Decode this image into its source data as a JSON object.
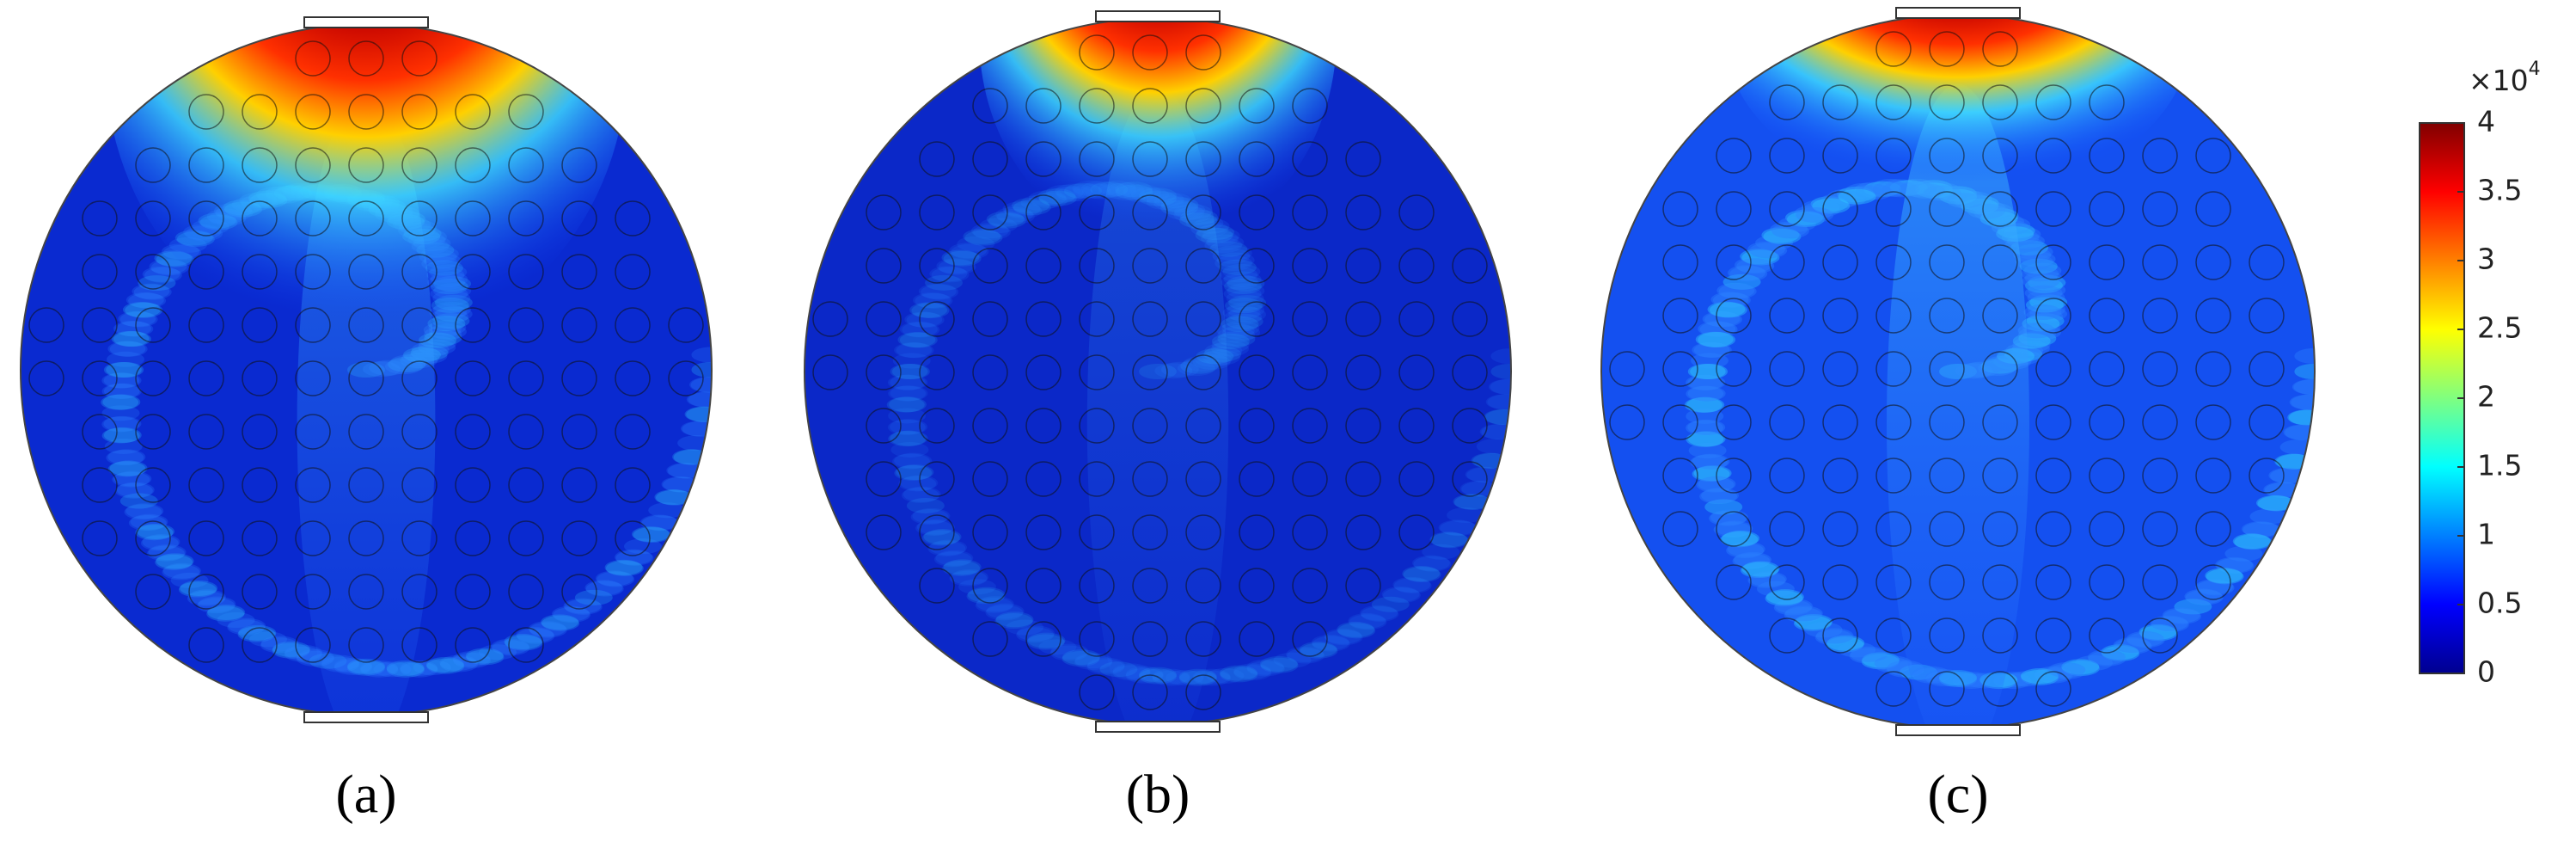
{
  "panels": [
    {
      "label": "(a)"
    },
    {
      "label": "(b)"
    },
    {
      "label": "(c)"
    }
  ],
  "colorbar": {
    "range": [
      0,
      4
    ],
    "ticks": [
      0,
      0.5,
      1,
      1.5,
      2,
      2.5,
      3,
      3.5,
      4
    ],
    "multiplier": {
      "base": "×10",
      "exponent": "4"
    }
  }
}
